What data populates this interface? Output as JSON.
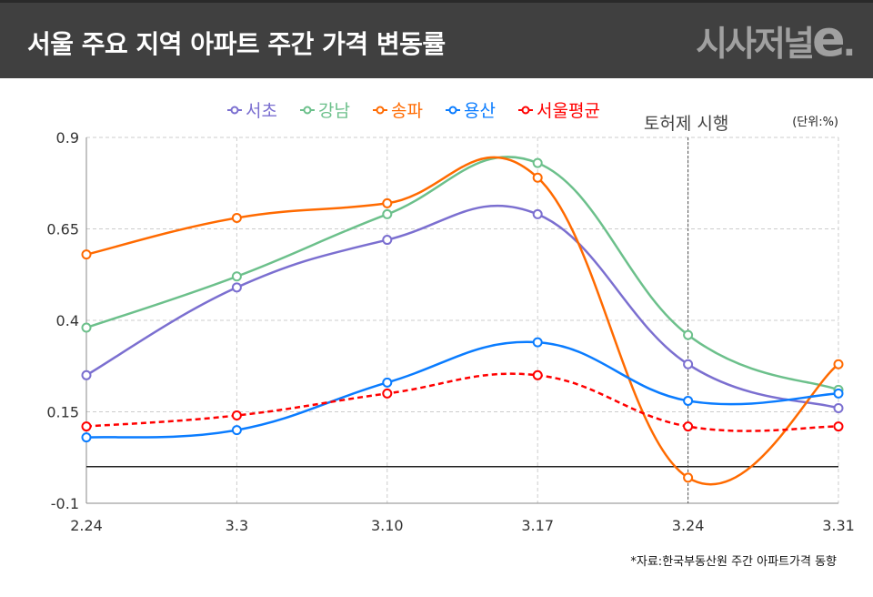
{
  "header": {
    "title": "서울 주요 지역 아파트 주간 가격 변동률",
    "logo": "시사저널e."
  },
  "source": "*자료:한국부동산원 주간 아파트가격 동향",
  "chart_data": {
    "type": "line",
    "title": "",
    "unit_label": "(단위:%)",
    "categories": [
      "2.24",
      "3.3",
      "3.10",
      "3.17",
      "3.24",
      "3.31"
    ],
    "ylim": [
      -0.1,
      0.9
    ],
    "yticks": [
      "0.9",
      "0.65",
      "0.4",
      "0.15",
      "-0.1"
    ],
    "ytick_values": [
      0.9,
      0.65,
      0.4,
      0.15,
      -0.1
    ],
    "grid": true,
    "legend_position": "top",
    "annotation": {
      "label": "토허제 시행",
      "category": "3.24"
    },
    "reference_line": 0,
    "series": [
      {
        "name": "서초",
        "color": "#7b6fd0",
        "dashed": false,
        "values": [
          0.25,
          0.49,
          0.62,
          0.69,
          0.28,
          0.16
        ]
      },
      {
        "name": "강남",
        "color": "#6cc08b",
        "dashed": false,
        "values": [
          0.38,
          0.52,
          0.69,
          0.83,
          0.36,
          0.21
        ]
      },
      {
        "name": "송파",
        "color": "#ff6a00",
        "dashed": false,
        "values": [
          0.58,
          0.68,
          0.72,
          0.79,
          -0.03,
          0.28
        ]
      },
      {
        "name": "용산",
        "color": "#0a7cff",
        "dashed": false,
        "values": [
          0.08,
          0.1,
          0.23,
          0.34,
          0.18,
          0.2
        ]
      },
      {
        "name": "서울평균",
        "color": "#ff0000",
        "dashed": true,
        "values": [
          0.11,
          0.14,
          0.2,
          0.25,
          0.11,
          0.11
        ]
      }
    ]
  }
}
